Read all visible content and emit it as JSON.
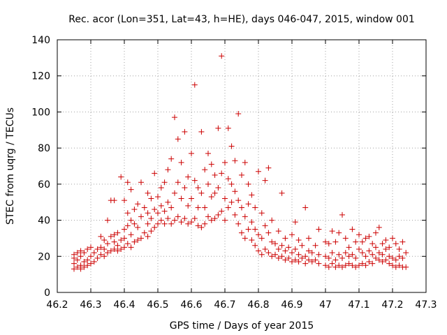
{
  "chart_data": {
    "type": "scatter",
    "title": "Rec. acor (Lon=351, Lat=43, h=HE), days 046-047, 2015, window 001",
    "xlabel": "GPS time / Days of year 2015",
    "ylabel": "STEC from uqrg / TECUs",
    "xlim": [
      46.2,
      47.3
    ],
    "ylim": [
      0,
      140
    ],
    "xticks": [
      46.2,
      46.3,
      46.4,
      46.5,
      46.6,
      46.7,
      46.8,
      46.9,
      47.0,
      47.1,
      47.2,
      47.3
    ],
    "xtick_labels": [
      "46.2",
      "46.3",
      "46.4",
      "46.5",
      "46.6",
      "46.7",
      "46.8",
      "46.9",
      "47",
      "47.1",
      "47.2",
      "47.3"
    ],
    "yticks": [
      0,
      20,
      40,
      60,
      80,
      100,
      120,
      140
    ],
    "ytick_labels": [
      "0",
      "20",
      "40",
      "60",
      "80",
      "100",
      "120",
      "140"
    ],
    "grid": true,
    "marker": "+",
    "color": "#cc0000",
    "series": [
      {
        "name": "STEC",
        "points": [
          [
            46.25,
            13
          ],
          [
            46.25,
            16
          ],
          [
            46.25,
            19
          ],
          [
            46.25,
            21
          ],
          [
            46.26,
            14
          ],
          [
            46.26,
            18
          ],
          [
            46.26,
            22
          ],
          [
            46.27,
            13
          ],
          [
            46.27,
            15
          ],
          [
            46.27,
            20
          ],
          [
            46.27,
            23
          ],
          [
            46.28,
            14
          ],
          [
            46.28,
            17
          ],
          [
            46.28,
            22
          ],
          [
            46.29,
            15
          ],
          [
            46.29,
            18
          ],
          [
            46.29,
            24
          ],
          [
            46.3,
            16
          ],
          [
            46.3,
            20
          ],
          [
            46.3,
            25
          ],
          [
            46.31,
            17
          ],
          [
            46.31,
            22
          ],
          [
            46.32,
            19
          ],
          [
            46.32,
            24
          ],
          [
            46.33,
            21
          ],
          [
            46.33,
            25
          ],
          [
            46.33,
            31
          ],
          [
            46.34,
            20
          ],
          [
            46.34,
            24
          ],
          [
            46.34,
            29
          ],
          [
            46.35,
            22
          ],
          [
            46.35,
            27
          ],
          [
            46.35,
            40
          ],
          [
            46.36,
            23
          ],
          [
            46.36,
            31
          ],
          [
            46.36,
            51
          ],
          [
            46.37,
            24
          ],
          [
            46.37,
            28
          ],
          [
            46.37,
            32
          ],
          [
            46.37,
            51
          ],
          [
            46.38,
            23
          ],
          [
            46.38,
            26
          ],
          [
            46.38,
            33
          ],
          [
            46.39,
            24
          ],
          [
            46.39,
            29
          ],
          [
            46.39,
            64
          ],
          [
            46.4,
            25
          ],
          [
            46.4,
            30
          ],
          [
            46.4,
            35
          ],
          [
            46.4,
            51
          ],
          [
            46.41,
            27
          ],
          [
            46.41,
            37
          ],
          [
            46.41,
            44
          ],
          [
            46.41,
            61
          ],
          [
            46.42,
            25
          ],
          [
            46.42,
            32
          ],
          [
            46.42,
            40
          ],
          [
            46.42,
            57
          ],
          [
            46.43,
            28
          ],
          [
            46.43,
            38
          ],
          [
            46.43,
            46
          ],
          [
            46.44,
            29
          ],
          [
            46.44,
            36
          ],
          [
            46.44,
            49
          ],
          [
            46.45,
            30
          ],
          [
            46.45,
            42
          ],
          [
            46.45,
            61
          ],
          [
            46.46,
            33
          ],
          [
            46.46,
            47
          ],
          [
            46.47,
            31
          ],
          [
            46.47,
            38
          ],
          [
            46.47,
            44
          ],
          [
            46.47,
            55
          ],
          [
            46.48,
            34
          ],
          [
            46.48,
            41
          ],
          [
            46.48,
            52
          ],
          [
            46.49,
            36
          ],
          [
            46.49,
            46
          ],
          [
            46.49,
            66
          ],
          [
            46.5,
            38
          ],
          [
            46.5,
            44
          ],
          [
            46.5,
            53
          ],
          [
            46.51,
            40
          ],
          [
            46.51,
            48
          ],
          [
            46.51,
            58
          ],
          [
            46.52,
            38
          ],
          [
            46.52,
            45
          ],
          [
            46.52,
            61
          ],
          [
            46.53,
            41
          ],
          [
            46.53,
            50
          ],
          [
            46.53,
            68
          ],
          [
            46.54,
            38
          ],
          [
            46.54,
            47
          ],
          [
            46.54,
            74
          ],
          [
            46.55,
            40
          ],
          [
            46.55,
            55
          ],
          [
            46.55,
            97
          ],
          [
            46.56,
            42
          ],
          [
            46.56,
            61
          ],
          [
            46.56,
            85
          ],
          [
            46.57,
            39
          ],
          [
            46.57,
            52
          ],
          [
            46.57,
            72
          ],
          [
            46.58,
            41
          ],
          [
            46.58,
            58
          ],
          [
            46.58,
            89
          ],
          [
            46.59,
            38
          ],
          [
            46.59,
            48
          ],
          [
            46.59,
            64
          ],
          [
            46.6,
            39
          ],
          [
            46.6,
            52
          ],
          [
            46.6,
            77
          ],
          [
            46.61,
            41
          ],
          [
            46.61,
            62
          ],
          [
            46.61,
            115
          ],
          [
            46.62,
            37
          ],
          [
            46.62,
            47
          ],
          [
            46.62,
            58
          ],
          [
            46.63,
            36
          ],
          [
            46.63,
            55
          ],
          [
            46.63,
            89
          ],
          [
            46.64,
            38
          ],
          [
            46.64,
            47
          ],
          [
            46.64,
            68
          ],
          [
            46.65,
            42
          ],
          [
            46.65,
            60
          ],
          [
            46.65,
            77
          ],
          [
            46.66,
            40
          ],
          [
            46.66,
            53
          ],
          [
            46.66,
            71
          ],
          [
            46.67,
            41
          ],
          [
            46.67,
            55
          ],
          [
            46.67,
            65
          ],
          [
            46.68,
            43
          ],
          [
            46.68,
            58
          ],
          [
            46.68,
            91
          ],
          [
            46.69,
            45
          ],
          [
            46.69,
            66
          ],
          [
            46.69,
            131
          ],
          [
            46.7,
            40
          ],
          [
            46.7,
            52
          ],
          [
            46.7,
            72
          ],
          [
            46.71,
            47
          ],
          [
            46.71,
            63
          ],
          [
            46.71,
            91
          ],
          [
            46.72,
            50
          ],
          [
            46.72,
            60
          ],
          [
            46.72,
            81
          ],
          [
            46.73,
            43
          ],
          [
            46.73,
            56
          ],
          [
            46.73,
            73
          ],
          [
            46.74,
            38
          ],
          [
            46.74,
            51
          ],
          [
            46.74,
            99
          ],
          [
            46.75,
            33
          ],
          [
            46.75,
            47
          ],
          [
            46.75,
            65
          ],
          [
            46.76,
            30
          ],
          [
            46.76,
            42
          ],
          [
            46.76,
            72
          ],
          [
            46.77,
            35
          ],
          [
            46.77,
            49
          ],
          [
            46.77,
            60
          ],
          [
            46.78,
            29
          ],
          [
            46.78,
            39
          ],
          [
            46.78,
            54
          ],
          [
            46.79,
            26
          ],
          [
            46.79,
            35
          ],
          [
            46.79,
            47
          ],
          [
            46.8,
            23
          ],
          [
            46.8,
            32
          ],
          [
            46.8,
            67
          ],
          [
            46.81,
            21
          ],
          [
            46.81,
            30
          ],
          [
            46.81,
            44
          ],
          [
            46.82,
            24
          ],
          [
            46.82,
            37
          ],
          [
            46.82,
            62
          ],
          [
            46.83,
            22
          ],
          [
            46.83,
            33
          ],
          [
            46.83,
            69
          ],
          [
            46.84,
            20
          ],
          [
            46.84,
            28
          ],
          [
            46.84,
            40
          ],
          [
            46.85,
            21
          ],
          [
            46.85,
            27
          ],
          [
            46.86,
            19
          ],
          [
            46.86,
            24
          ],
          [
            46.86,
            34
          ],
          [
            46.87,
            20
          ],
          [
            46.87,
            26
          ],
          [
            46.87,
            55
          ],
          [
            46.88,
            18
          ],
          [
            46.88,
            23
          ],
          [
            46.88,
            30
          ],
          [
            46.89,
            19
          ],
          [
            46.89,
            25
          ],
          [
            46.9,
            17
          ],
          [
            46.9,
            22
          ],
          [
            46.9,
            32
          ],
          [
            46.91,
            18
          ],
          [
            46.91,
            24
          ],
          [
            46.91,
            39
          ],
          [
            46.92,
            17
          ],
          [
            46.92,
            21
          ],
          [
            46.92,
            29
          ],
          [
            46.93,
            19
          ],
          [
            46.93,
            26
          ],
          [
            46.94,
            16
          ],
          [
            46.94,
            20
          ],
          [
            46.94,
            47
          ],
          [
            46.95,
            18
          ],
          [
            46.95,
            23
          ],
          [
            46.95,
            30
          ],
          [
            46.96,
            17
          ],
          [
            46.96,
            22
          ],
          [
            46.97,
            18
          ],
          [
            46.97,
            26
          ],
          [
            46.98,
            16
          ],
          [
            46.98,
            21
          ],
          [
            46.98,
            35
          ],
          [
            47.0,
            15
          ],
          [
            47.0,
            20
          ],
          [
            47.0,
            28
          ],
          [
            47.01,
            14
          ],
          [
            47.01,
            19
          ],
          [
            47.01,
            27
          ],
          [
            47.02,
            16
          ],
          [
            47.02,
            22
          ],
          [
            47.02,
            34
          ],
          [
            47.03,
            14
          ],
          [
            47.03,
            18
          ],
          [
            47.03,
            28
          ],
          [
            47.04,
            15
          ],
          [
            47.04,
            21
          ],
          [
            47.04,
            33
          ],
          [
            47.05,
            14
          ],
          [
            47.05,
            19
          ],
          [
            47.05,
            43
          ],
          [
            47.06,
            15
          ],
          [
            47.06,
            22
          ],
          [
            47.06,
            30
          ],
          [
            47.07,
            16
          ],
          [
            47.07,
            20
          ],
          [
            47.07,
            25
          ],
          [
            47.08,
            15
          ],
          [
            47.08,
            21
          ],
          [
            47.08,
            35
          ],
          [
            47.09,
            14
          ],
          [
            47.09,
            19
          ],
          [
            47.09,
            28
          ],
          [
            47.1,
            15
          ],
          [
            47.1,
            24
          ],
          [
            47.1,
            32
          ],
          [
            47.11,
            16
          ],
          [
            47.11,
            22
          ],
          [
            47.11,
            28
          ],
          [
            47.12,
            15
          ],
          [
            47.12,
            20
          ],
          [
            47.12,
            30
          ],
          [
            47.13,
            17
          ],
          [
            47.13,
            23
          ],
          [
            47.13,
            31
          ],
          [
            47.14,
            16
          ],
          [
            47.14,
            21
          ],
          [
            47.14,
            27
          ],
          [
            47.15,
            19
          ],
          [
            47.15,
            25
          ],
          [
            47.15,
            33
          ],
          [
            47.16,
            18
          ],
          [
            47.16,
            22
          ],
          [
            47.16,
            36
          ],
          [
            47.17,
            17
          ],
          [
            47.17,
            21
          ],
          [
            47.17,
            27
          ],
          [
            47.18,
            18
          ],
          [
            47.18,
            24
          ],
          [
            47.18,
            29
          ],
          [
            47.19,
            16
          ],
          [
            47.19,
            20
          ],
          [
            47.19,
            25
          ],
          [
            47.2,
            15
          ],
          [
            47.2,
            19
          ],
          [
            47.2,
            30
          ],
          [
            47.21,
            14
          ],
          [
            47.21,
            18
          ],
          [
            47.21,
            27
          ],
          [
            47.22,
            15
          ],
          [
            47.22,
            20
          ],
          [
            47.22,
            24
          ],
          [
            47.23,
            14
          ],
          [
            47.23,
            19
          ],
          [
            47.23,
            28
          ],
          [
            47.24,
            14
          ],
          [
            47.24,
            22
          ]
        ]
      }
    ]
  }
}
